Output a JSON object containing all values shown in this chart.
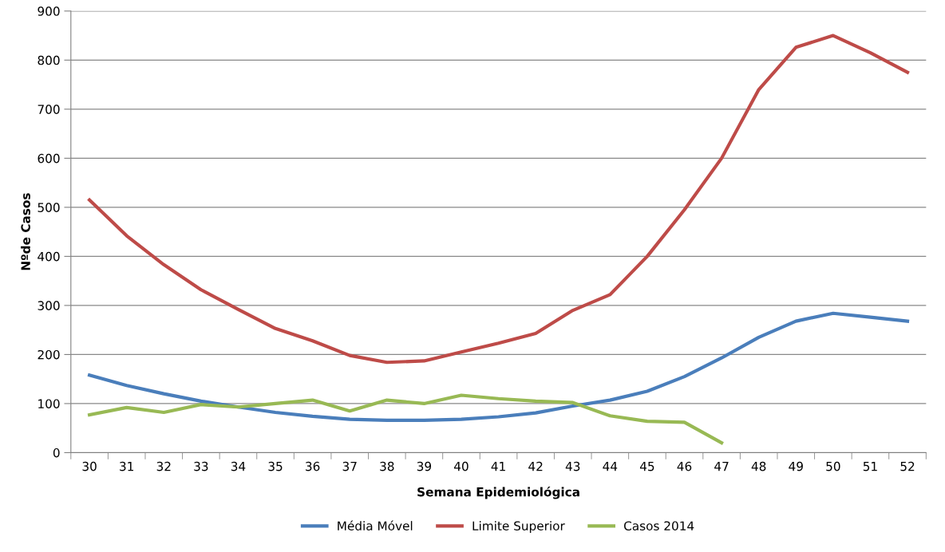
{
  "chart_data": {
    "type": "line",
    "xlabel": "Semana Epidemiológica",
    "ylabel": "Nºde Casos",
    "categories": [
      "30",
      "31",
      "32",
      "33",
      "34",
      "35",
      "36",
      "37",
      "38",
      "39",
      "40",
      "41",
      "42",
      "43",
      "44",
      "45",
      "46",
      "47",
      "48",
      "49",
      "50",
      "51",
      "52"
    ],
    "series": [
      {
        "name": "Média Móvel",
        "color": "#4a7ebb",
        "values": [
          158,
          137,
          120,
          105,
          93,
          82,
          74,
          68,
          66,
          66,
          68,
          73,
          81,
          95,
          107,
          125,
          155,
          193,
          235,
          268,
          284,
          276,
          268
        ]
      },
      {
        "name": "Limite Superior",
        "color": "#be4b48",
        "values": [
          515,
          442,
          383,
          332,
          292,
          253,
          228,
          198,
          184,
          187,
          205,
          223,
          243,
          290,
          322,
          400,
          495,
          600,
          740,
          826,
          850,
          815,
          775
        ]
      },
      {
        "name": "Casos 2014",
        "color": "#98b954",
        "values": [
          77,
          92,
          82,
          98,
          93,
          100,
          107,
          85,
          107,
          100,
          117,
          110,
          105,
          102,
          75,
          64,
          62,
          20,
          null,
          null,
          null,
          null,
          null
        ]
      }
    ],
    "ylim": [
      0,
      900
    ],
    "yticks": [
      0,
      100,
      200,
      300,
      400,
      500,
      600,
      700,
      800,
      900
    ],
    "grid": "y",
    "legend": "bottom",
    "marker": "none",
    "line_style": "solid"
  }
}
